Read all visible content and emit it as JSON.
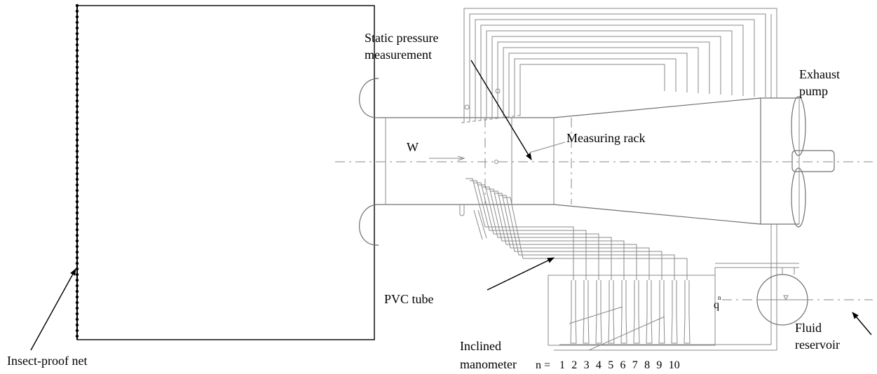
{
  "labels": {
    "static_pressure_line1": "Static pressure",
    "static_pressure_line2": "measurement",
    "exhaust_line1": "Exhaust",
    "exhaust_line2": "pump",
    "measuring_rack": "Measuring rack",
    "wind_symbol": "W",
    "pvc_tube": "PVC tube",
    "flow_symbol": "q",
    "flow_superscript": "n",
    "fluid_line1": "Fluid",
    "fluid_line2": "reservoir",
    "manometer_line1": "Inclined",
    "manometer_line2": "manometer",
    "insect_net": "Insect-proof net"
  },
  "manometer_index": {
    "prefix": "n =",
    "values": [
      "1",
      "2",
      "3",
      "4",
      "5",
      "6",
      "7",
      "8",
      "9",
      "10"
    ]
  }
}
